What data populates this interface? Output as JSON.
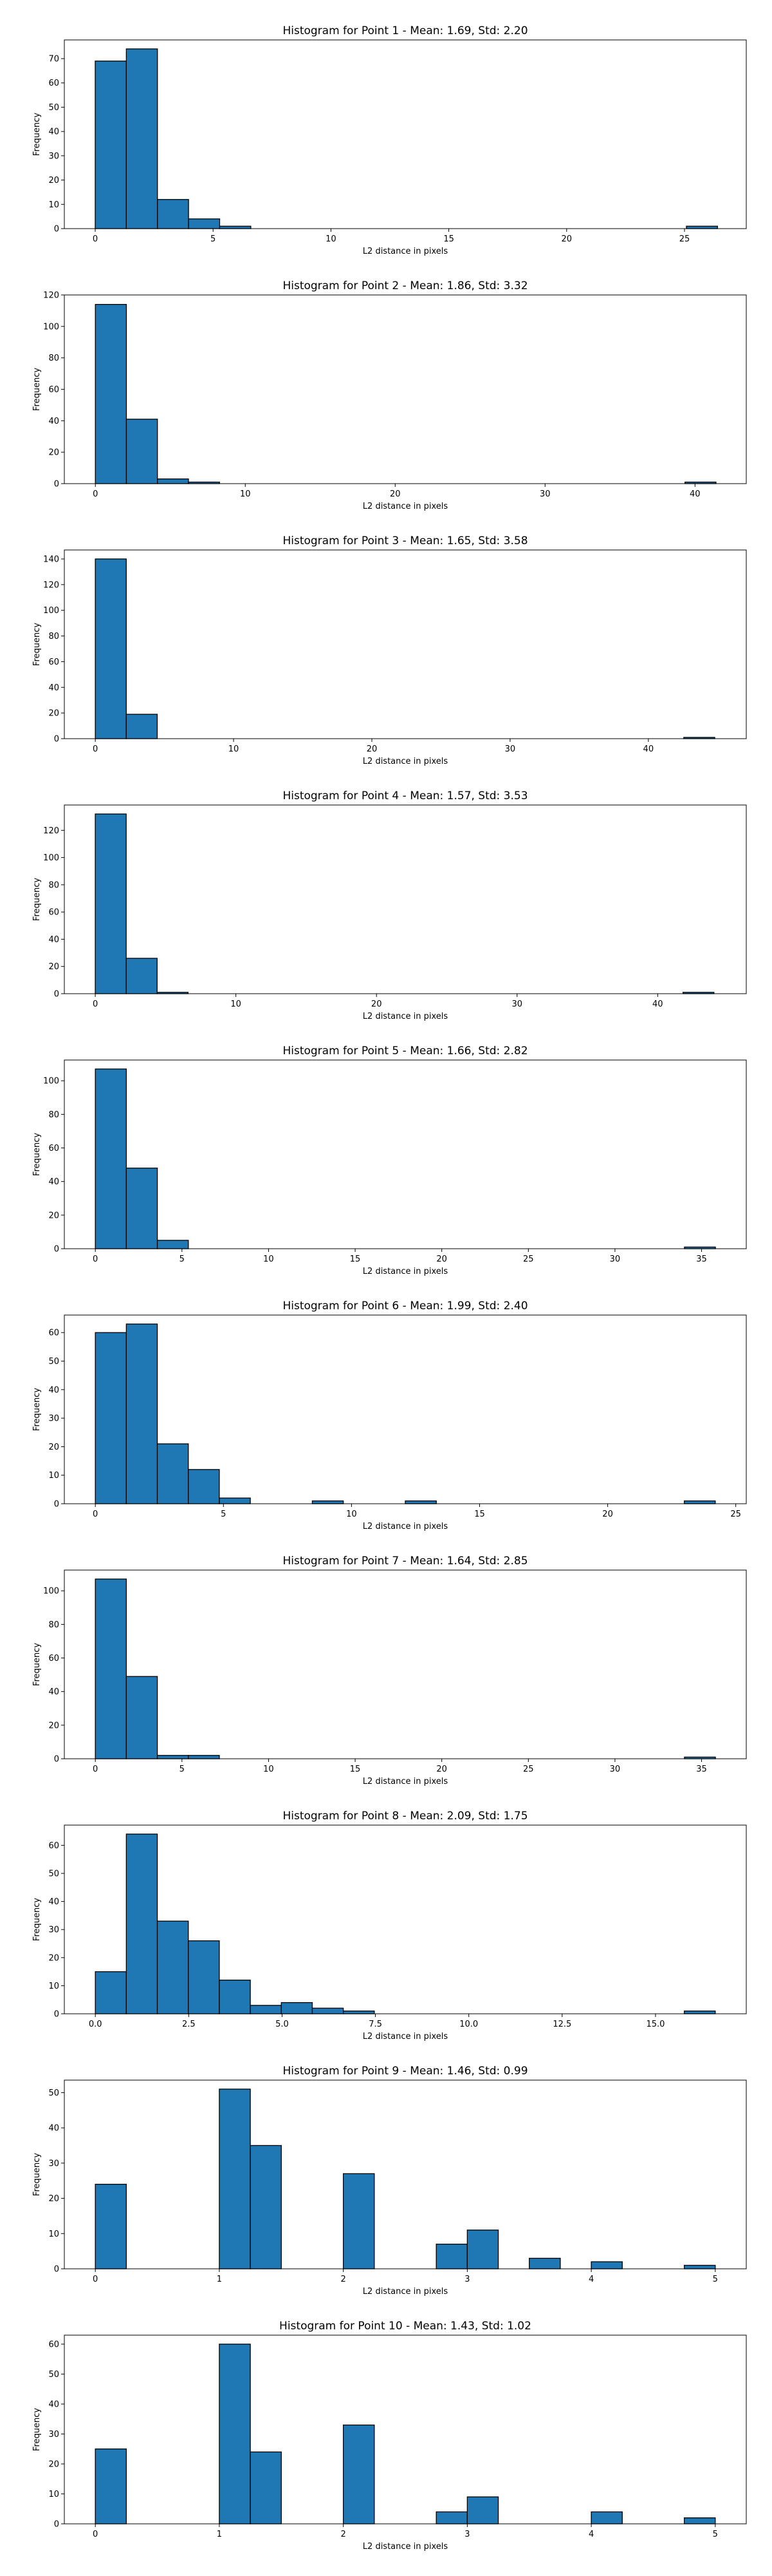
{
  "colors": {
    "bar_fill": "#1f77b4",
    "bar_edge": "#000000",
    "axes": "#000000"
  },
  "chart_data": [
    {
      "type": "bar",
      "title": "Histogram for Point 1 - Mean: 1.69, Std: 2.20",
      "xlabel": "L2 distance in pixels",
      "ylabel": "Frequency",
      "xlim": [
        -1.31,
        27.62
      ],
      "ylim": [
        0,
        77.7
      ],
      "xticks": [
        0,
        5,
        10,
        15,
        20,
        25
      ],
      "xtick_labels": [
        "0",
        "5",
        "10",
        "15",
        "20",
        "25"
      ],
      "yticks": [
        0,
        10,
        20,
        30,
        40,
        50,
        60,
        70
      ],
      "ytick_labels": [
        "0",
        "10",
        "20",
        "30",
        "40",
        "50",
        "60",
        "70"
      ],
      "bin_edges": [
        0.0,
        1.32,
        2.64,
        3.96,
        5.28,
        6.6,
        7.92,
        9.24,
        10.56,
        11.88,
        13.2,
        14.52,
        15.84,
        17.16,
        18.48,
        19.8,
        21.12,
        22.44,
        23.76,
        25.08,
        26.4
      ],
      "counts": [
        69,
        74,
        12,
        4,
        1,
        0,
        0,
        0,
        0,
        0,
        0,
        0,
        0,
        0,
        0,
        0,
        0,
        0,
        0,
        1
      ]
    },
    {
      "type": "bar",
      "title": "Histogram for Point 2 - Mean: 1.86, Std: 3.32",
      "xlabel": "L2 distance in pixels",
      "ylabel": "Frequency",
      "xlim": [
        -2.07,
        43.42
      ],
      "ylim": [
        0,
        120
      ],
      "xticks": [
        0,
        10,
        20,
        30,
        40
      ],
      "xtick_labels": [
        "0",
        "10",
        "20",
        "30",
        "40"
      ],
      "yticks": [
        0,
        20,
        40,
        60,
        80,
        100,
        120
      ],
      "ytick_labels": [
        "0",
        "20",
        "40",
        "60",
        "80",
        "100",
        "120"
      ],
      "bin_edges": [
        0.0,
        2.07,
        4.14,
        6.21,
        8.28,
        10.35,
        12.42,
        14.49,
        16.56,
        18.63,
        20.7,
        22.77,
        24.84,
        26.91,
        28.98,
        31.05,
        33.12,
        35.19,
        37.26,
        39.33,
        41.4
      ],
      "counts": [
        114,
        41,
        3,
        1,
        0,
        0,
        0,
        0,
        0,
        0,
        0,
        0,
        0,
        0,
        0,
        0,
        0,
        0,
        0,
        1
      ]
    },
    {
      "type": "bar",
      "title": "Histogram for Point 3 - Mean: 1.65, Std: 3.58",
      "xlabel": "L2 distance in pixels",
      "ylabel": "Frequency",
      "xlim": [
        -2.24,
        47.08
      ],
      "ylim": [
        0,
        147
      ],
      "xticks": [
        0,
        10,
        20,
        30,
        40
      ],
      "xtick_labels": [
        "0",
        "10",
        "20",
        "30",
        "40"
      ],
      "yticks": [
        0,
        20,
        40,
        60,
        80,
        100,
        120,
        140
      ],
      "ytick_labels": [
        "0",
        "20",
        "40",
        "60",
        "80",
        "100",
        "120",
        "140"
      ],
      "bin_edges": [
        0.0,
        2.24,
        4.48,
        6.72,
        8.96,
        11.2,
        13.44,
        15.68,
        17.92,
        20.16,
        22.4,
        24.64,
        26.88,
        29.12,
        31.36,
        33.6,
        35.84,
        38.08,
        40.32,
        42.56,
        44.8
      ],
      "counts": [
        140,
        19,
        0,
        0,
        0,
        0,
        0,
        0,
        0,
        0,
        0,
        0,
        0,
        0,
        0,
        0,
        0,
        0,
        0,
        1
      ]
    },
    {
      "type": "bar",
      "title": "Histogram for Point 4 - Mean: 1.57, Std: 3.53",
      "xlabel": "L2 distance in pixels",
      "ylabel": "Frequency",
      "xlim": [
        -2.2,
        46.3
      ],
      "ylim": [
        0,
        138.6
      ],
      "xticks": [
        0,
        10,
        20,
        30,
        40
      ],
      "xtick_labels": [
        "0",
        "10",
        "20",
        "30",
        "40"
      ],
      "yticks": [
        0,
        20,
        40,
        60,
        80,
        100,
        120
      ],
      "ytick_labels": [
        "0",
        "20",
        "40",
        "60",
        "80",
        "100",
        "120"
      ],
      "bin_edges": [
        0.0,
        2.2,
        4.4,
        6.6,
        8.8,
        11.0,
        13.2,
        15.4,
        17.6,
        19.8,
        22.0,
        24.2,
        26.4,
        28.6,
        30.8,
        33.0,
        35.2,
        37.4,
        39.6,
        41.8,
        44.0
      ],
      "counts": [
        132,
        26,
        1,
        0,
        0,
        0,
        0,
        0,
        0,
        0,
        0,
        0,
        0,
        0,
        0,
        0,
        0,
        0,
        0,
        1
      ]
    },
    {
      "type": "bar",
      "title": "Histogram for Point 5 - Mean: 1.66, Std: 2.82",
      "xlabel": "L2 distance in pixels",
      "ylabel": "Frequency",
      "xlim": [
        -1.79,
        37.58
      ],
      "ylim": [
        0,
        112.35
      ],
      "xticks": [
        0,
        5,
        10,
        15,
        20,
        25,
        30,
        35
      ],
      "xtick_labels": [
        "0",
        "5",
        "10",
        "15",
        "20",
        "25",
        "30",
        "35"
      ],
      "yticks": [
        0,
        20,
        40,
        60,
        80,
        100
      ],
      "ytick_labels": [
        "0",
        "20",
        "40",
        "60",
        "80",
        "100"
      ],
      "bin_edges": [
        0.0,
        1.79,
        3.58,
        5.37,
        7.16,
        8.95,
        10.74,
        12.53,
        14.32,
        16.11,
        17.9,
        19.69,
        21.48,
        23.27,
        25.06,
        26.85,
        28.64,
        30.43,
        32.22,
        34.01,
        35.8
      ],
      "counts": [
        107,
        48,
        5,
        0,
        0,
        0,
        0,
        0,
        0,
        0,
        0,
        0,
        0,
        0,
        0,
        0,
        0,
        0,
        0,
        1
      ]
    },
    {
      "type": "bar",
      "title": "Histogram for Point 6 - Mean: 1.99, Std: 2.40",
      "xlabel": "L2 distance in pixels",
      "ylabel": "Frequency",
      "xlim": [
        -1.21,
        25.41
      ],
      "ylim": [
        0,
        66.15
      ],
      "xticks": [
        0,
        5,
        10,
        15,
        20,
        25
      ],
      "xtick_labels": [
        "0",
        "5",
        "10",
        "15",
        "20",
        "25"
      ],
      "yticks": [
        0,
        10,
        20,
        30,
        40,
        50,
        60
      ],
      "ytick_labels": [
        "0",
        "10",
        "20",
        "30",
        "40",
        "50",
        "60"
      ],
      "bin_edges": [
        0.0,
        1.21,
        2.42,
        3.63,
        4.84,
        6.05,
        7.26,
        8.47,
        9.68,
        10.89,
        12.1,
        13.31,
        14.52,
        15.73,
        16.94,
        18.15,
        19.36,
        20.57,
        21.78,
        22.99,
        24.2
      ],
      "counts": [
        60,
        63,
        21,
        12,
        2,
        0,
        0,
        1,
        0,
        0,
        1,
        0,
        0,
        0,
        0,
        0,
        0,
        0,
        0,
        1
      ]
    },
    {
      "type": "bar",
      "title": "Histogram for Point 7 - Mean: 1.64, Std: 2.85",
      "xlabel": "L2 distance in pixels",
      "ylabel": "Frequency",
      "xlim": [
        -1.79,
        37.58
      ],
      "ylim": [
        0,
        112.35
      ],
      "xticks": [
        0,
        5,
        10,
        15,
        20,
        25,
        30,
        35
      ],
      "xtick_labels": [
        "0",
        "5",
        "10",
        "15",
        "20",
        "25",
        "30",
        "35"
      ],
      "yticks": [
        0,
        20,
        40,
        60,
        80,
        100
      ],
      "ytick_labels": [
        "0",
        "20",
        "40",
        "60",
        "80",
        "100"
      ],
      "bin_edges": [
        0.0,
        1.79,
        3.58,
        5.37,
        7.16,
        8.95,
        10.74,
        12.53,
        14.32,
        16.11,
        17.9,
        19.69,
        21.48,
        23.27,
        25.06,
        26.85,
        28.64,
        30.43,
        32.22,
        34.01,
        35.8
      ],
      "counts": [
        107,
        49,
        2,
        2,
        0,
        0,
        0,
        0,
        0,
        0,
        0,
        0,
        0,
        0,
        0,
        0,
        0,
        0,
        0,
        1
      ]
    },
    {
      "type": "bar",
      "title": "Histogram for Point 8 - Mean: 2.09, Std: 1.75",
      "xlabel": "L2 distance in pixels",
      "ylabel": "Frequency",
      "xlim": [
        -0.83,
        17.43
      ],
      "ylim": [
        0,
        67.2
      ],
      "xticks": [
        0.0,
        2.5,
        5.0,
        7.5,
        10.0,
        12.5,
        15.0
      ],
      "xtick_labels": [
        "0.0",
        "2.5",
        "5.0",
        "7.5",
        "10.0",
        "12.5",
        "15.0"
      ],
      "yticks": [
        0,
        10,
        20,
        30,
        40,
        50,
        60
      ],
      "ytick_labels": [
        "0",
        "10",
        "20",
        "30",
        "40",
        "50",
        "60"
      ],
      "bin_edges": [
        0.0,
        0.83,
        1.66,
        2.49,
        3.32,
        4.15,
        4.98,
        5.81,
        6.64,
        7.47,
        8.3,
        9.13,
        9.96,
        10.79,
        11.62,
        12.45,
        13.28,
        14.11,
        14.94,
        15.77,
        16.6
      ],
      "counts": [
        15,
        64,
        33,
        26,
        12,
        3,
        4,
        2,
        1,
        0,
        0,
        0,
        0,
        0,
        0,
        0,
        0,
        0,
        0,
        1
      ]
    },
    {
      "type": "bar",
      "title": "Histogram for Point 9 - Mean: 1.46, Std: 0.99",
      "xlabel": "L2 distance in pixels",
      "ylabel": "Frequency",
      "xlim": [
        -0.25,
        5.25
      ],
      "ylim": [
        0,
        53.55
      ],
      "xticks": [
        0,
        1,
        2,
        3,
        4,
        5
      ],
      "xtick_labels": [
        "0",
        "1",
        "2",
        "3",
        "4",
        "5"
      ],
      "yticks": [
        0,
        10,
        20,
        30,
        40,
        50
      ],
      "ytick_labels": [
        "0",
        "10",
        "20",
        "30",
        "40",
        "50"
      ],
      "bin_edges": [
        0.0,
        0.25,
        0.5,
        0.75,
        1.0,
        1.25,
        1.5,
        1.75,
        2.0,
        2.25,
        2.5,
        2.75,
        3.0,
        3.25,
        3.5,
        3.75,
        4.0,
        4.25,
        4.5,
        4.75,
        5.0
      ],
      "counts": [
        24,
        0,
        0,
        0,
        51,
        35,
        0,
        0,
        27,
        0,
        0,
        7,
        11,
        0,
        3,
        0,
        2,
        0,
        0,
        1
      ]
    },
    {
      "type": "bar",
      "title": "Histogram for Point 10 - Mean: 1.43, Std: 1.02",
      "xlabel": "L2 distance in pixels",
      "ylabel": "Frequency",
      "xlim": [
        -0.25,
        5.25
      ],
      "ylim": [
        0,
        63
      ],
      "xticks": [
        0,
        1,
        2,
        3,
        4,
        5
      ],
      "xtick_labels": [
        "0",
        "1",
        "2",
        "3",
        "4",
        "5"
      ],
      "yticks": [
        0,
        10,
        20,
        30,
        40,
        50,
        60
      ],
      "ytick_labels": [
        "0",
        "10",
        "20",
        "30",
        "40",
        "50",
        "60"
      ],
      "bin_edges": [
        0.0,
        0.25,
        0.5,
        0.75,
        1.0,
        1.25,
        1.5,
        1.75,
        2.0,
        2.25,
        2.5,
        2.75,
        3.0,
        3.25,
        3.5,
        3.75,
        4.0,
        4.25,
        4.5,
        4.75,
        5.0
      ],
      "counts": [
        25,
        0,
        0,
        0,
        60,
        24,
        0,
        0,
        33,
        0,
        0,
        4,
        9,
        0,
        0,
        0,
        4,
        0,
        0,
        2
      ]
    }
  ]
}
